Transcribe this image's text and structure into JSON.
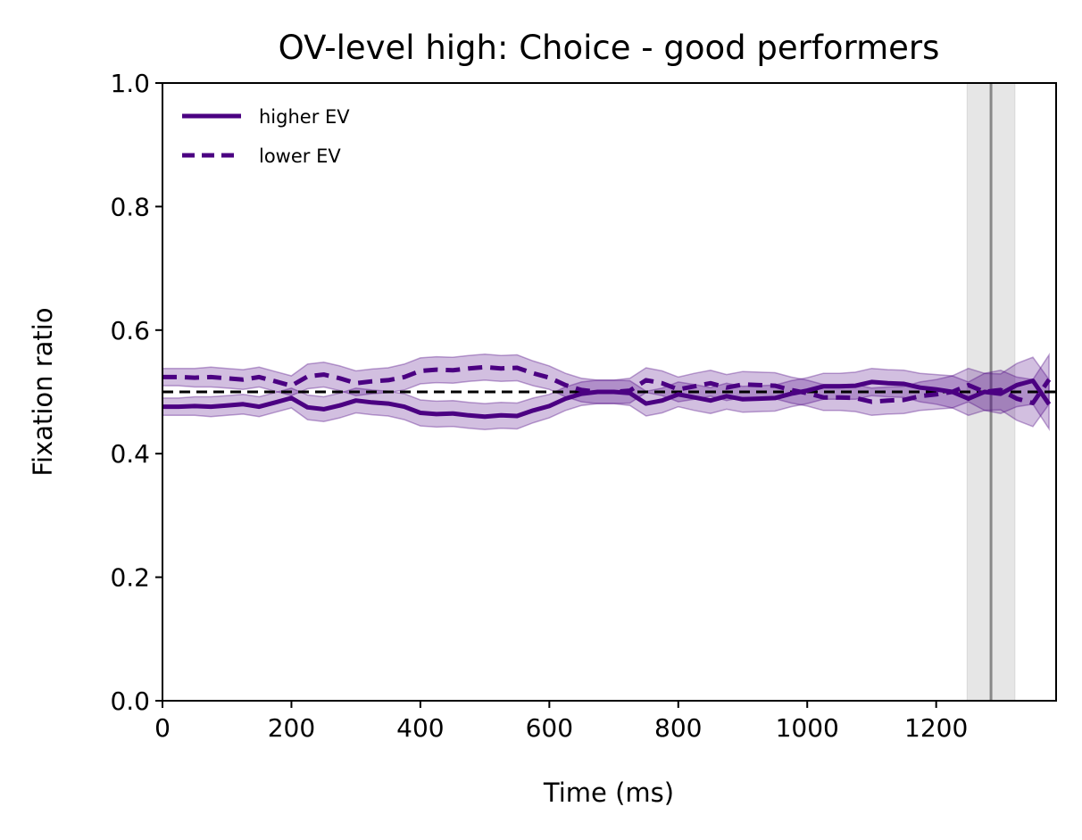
{
  "chart_data": {
    "type": "line",
    "title": "OV-level high: Choice - good performers",
    "xlabel": "Time (ms)",
    "ylabel": "Fixation ratio",
    "xlim": [
      0,
      1386
    ],
    "ylim": [
      0,
      1.0
    ],
    "xticks": [
      0,
      200,
      400,
      600,
      800,
      1000,
      1200
    ],
    "xtick_labels": [
      "0",
      "200",
      "400",
      "600",
      "800",
      "1000",
      "1200"
    ],
    "yticks": [
      0.0,
      0.2,
      0.4,
      0.6,
      0.8,
      1.0
    ],
    "ytick_labels": [
      "0.0",
      "0.2",
      "0.4",
      "0.6",
      "0.8",
      "1.0"
    ],
    "grid": false,
    "legend_position": "top-left",
    "reference_line": {
      "y": 0.5,
      "style": "dashed",
      "color": "#000000"
    },
    "vertical_marker": {
      "x": 1285,
      "band": [
        1248,
        1322
      ],
      "line_color": "#888888",
      "band_color": "#e6e6e6"
    },
    "x": [
      0,
      25,
      50,
      75,
      100,
      125,
      150,
      175,
      200,
      225,
      250,
      275,
      300,
      325,
      350,
      375,
      400,
      425,
      450,
      475,
      500,
      525,
      550,
      575,
      600,
      625,
      650,
      675,
      700,
      725,
      750,
      775,
      800,
      825,
      850,
      875,
      900,
      925,
      950,
      975,
      1000,
      1025,
      1050,
      1075,
      1100,
      1125,
      1150,
      1175,
      1200,
      1225,
      1250,
      1275,
      1300,
      1325,
      1350,
      1375
    ],
    "series": [
      {
        "name": "higher EV",
        "style": "solid",
        "color": "#4b0082",
        "values": [
          0.476,
          0.476,
          0.477,
          0.476,
          0.478,
          0.48,
          0.476,
          0.483,
          0.49,
          0.475,
          0.472,
          0.478,
          0.486,
          0.483,
          0.481,
          0.476,
          0.466,
          0.464,
          0.465,
          0.462,
          0.46,
          0.462,
          0.461,
          0.47,
          0.477,
          0.489,
          0.497,
          0.5,
          0.5,
          0.498,
          0.481,
          0.486,
          0.496,
          0.491,
          0.486,
          0.493,
          0.488,
          0.489,
          0.49,
          0.497,
          0.502,
          0.509,
          0.509,
          0.51,
          0.516,
          0.514,
          0.513,
          0.507,
          0.504,
          0.5,
          0.489,
          0.5,
          0.497,
          0.511,
          0.518,
          0.48
        ],
        "ci_lower": [
          0.462,
          0.462,
          0.462,
          0.46,
          0.462,
          0.464,
          0.46,
          0.467,
          0.474,
          0.455,
          0.452,
          0.458,
          0.466,
          0.463,
          0.461,
          0.455,
          0.445,
          0.443,
          0.444,
          0.441,
          0.439,
          0.441,
          0.44,
          0.45,
          0.458,
          0.47,
          0.478,
          0.481,
          0.481,
          0.478,
          0.461,
          0.466,
          0.476,
          0.47,
          0.465,
          0.472,
          0.467,
          0.468,
          0.469,
          0.476,
          0.481,
          0.488,
          0.488,
          0.488,
          0.494,
          0.492,
          0.491,
          0.484,
          0.48,
          0.474,
          0.462,
          0.47,
          0.465,
          0.476,
          0.48,
          0.44
        ],
        "ci_upper": [
          0.49,
          0.49,
          0.492,
          0.492,
          0.494,
          0.496,
          0.492,
          0.499,
          0.506,
          0.495,
          0.492,
          0.498,
          0.506,
          0.503,
          0.501,
          0.497,
          0.487,
          0.485,
          0.486,
          0.483,
          0.481,
          0.483,
          0.482,
          0.49,
          0.496,
          0.508,
          0.516,
          0.519,
          0.519,
          0.518,
          0.501,
          0.506,
          0.516,
          0.512,
          0.507,
          0.514,
          0.509,
          0.51,
          0.511,
          0.518,
          0.523,
          0.53,
          0.53,
          0.532,
          0.538,
          0.536,
          0.535,
          0.53,
          0.528,
          0.526,
          0.516,
          0.53,
          0.529,
          0.546,
          0.556,
          0.52
        ]
      },
      {
        "name": "lower EV",
        "style": "dashed",
        "color": "#4b0082",
        "values": [
          0.524,
          0.524,
          0.523,
          0.524,
          0.522,
          0.52,
          0.524,
          0.517,
          0.51,
          0.525,
          0.528,
          0.522,
          0.514,
          0.517,
          0.519,
          0.524,
          0.534,
          0.536,
          0.535,
          0.538,
          0.54,
          0.538,
          0.539,
          0.53,
          0.523,
          0.511,
          0.503,
          0.5,
          0.5,
          0.502,
          0.519,
          0.514,
          0.504,
          0.509,
          0.514,
          0.507,
          0.512,
          0.511,
          0.51,
          0.503,
          0.498,
          0.491,
          0.491,
          0.49,
          0.484,
          0.486,
          0.487,
          0.493,
          0.496,
          0.5,
          0.511,
          0.5,
          0.503,
          0.489,
          0.482,
          0.52
        ],
        "ci_lower": [
          0.51,
          0.51,
          0.508,
          0.508,
          0.506,
          0.504,
          0.508,
          0.501,
          0.494,
          0.505,
          0.508,
          0.502,
          0.494,
          0.497,
          0.499,
          0.503,
          0.513,
          0.515,
          0.514,
          0.517,
          0.519,
          0.517,
          0.518,
          0.51,
          0.504,
          0.492,
          0.484,
          0.481,
          0.481,
          0.482,
          0.499,
          0.494,
          0.484,
          0.488,
          0.493,
          0.486,
          0.491,
          0.49,
          0.489,
          0.482,
          0.477,
          0.47,
          0.47,
          0.468,
          0.462,
          0.464,
          0.465,
          0.47,
          0.472,
          0.474,
          0.484,
          0.47,
          0.471,
          0.454,
          0.444,
          0.48
        ],
        "ci_upper": [
          0.538,
          0.538,
          0.538,
          0.54,
          0.538,
          0.536,
          0.54,
          0.533,
          0.526,
          0.545,
          0.548,
          0.542,
          0.534,
          0.537,
          0.539,
          0.545,
          0.555,
          0.557,
          0.556,
          0.559,
          0.561,
          0.559,
          0.56,
          0.55,
          0.542,
          0.53,
          0.522,
          0.519,
          0.519,
          0.522,
          0.539,
          0.534,
          0.524,
          0.53,
          0.535,
          0.528,
          0.533,
          0.532,
          0.531,
          0.524,
          0.519,
          0.512,
          0.512,
          0.512,
          0.506,
          0.508,
          0.509,
          0.516,
          0.52,
          0.526,
          0.538,
          0.53,
          0.535,
          0.524,
          0.52,
          0.56
        ]
      }
    ]
  }
}
